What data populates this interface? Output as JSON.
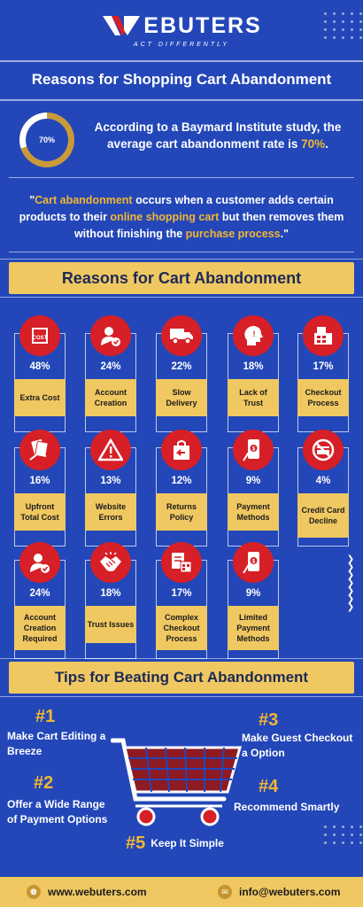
{
  "brand": {
    "name": "EBUTERS",
    "tagline": "ACT DIFFERENTLY"
  },
  "title": "Reasons for Shopping Cart Abandonment",
  "stat": {
    "ring_label": "70%",
    "ring_fraction": 0.7,
    "text_before": "According to a Baymard Institute study, the average cart abandonment rate is ",
    "text_highlight": "70%",
    "text_after": "."
  },
  "quote": {
    "p1": "\"",
    "h1": "Cart abandonment",
    "p2": " occurs when a customer adds certain products to their ",
    "h2": "online shopping cart",
    "p3": " but then removes them without finishing the ",
    "h3": "purchase process",
    "p4": ".\""
  },
  "reasons_heading": "Reasons for Cart Abandonment",
  "reasons": [
    {
      "pct": "48%",
      "label": "Extra Cost",
      "icon": "price-tag-icon"
    },
    {
      "pct": "24%",
      "label": "Account Creation",
      "icon": "user-check-icon"
    },
    {
      "pct": "22%",
      "label": "Slow Delivery",
      "icon": "truck-icon"
    },
    {
      "pct": "18%",
      "label": "Lack of Trust",
      "icon": "head-alert-icon"
    },
    {
      "pct": "17%",
      "label": "Checkout Process",
      "icon": "checkout-icon"
    },
    {
      "pct": "16%",
      "label": "Upfront Total Cost",
      "icon": "money-hand-icon"
    },
    {
      "pct": "13%",
      "label": "Website Errors",
      "icon": "warning-icon"
    },
    {
      "pct": "12%",
      "label": "Returns Policy",
      "icon": "return-bag-icon"
    },
    {
      "pct": "9%",
      "label": "Payment Methods",
      "icon": "mobile-payment-icon"
    },
    {
      "pct": "4%",
      "label": "Credit Card Decline",
      "icon": "card-declined-icon"
    },
    {
      "pct": "24%",
      "label": "Account Creation Required",
      "icon": "user-check-icon"
    },
    {
      "pct": "18%",
      "label": "Trust Issues",
      "icon": "handshake-icon"
    },
    {
      "pct": "17%",
      "label": "Complex Checkout Process",
      "icon": "complex-checkout-icon"
    },
    {
      "pct": "9%",
      "label": "Limited Payment Methods",
      "icon": "mobile-payment-icon"
    }
  ],
  "tips_heading": "Tips for Beating Cart Abandonment",
  "tips": [
    {
      "num": "#1",
      "text": "Make Cart Editing a Breeze"
    },
    {
      "num": "#2",
      "text": "Offer a Wide Range of Payment Options"
    },
    {
      "num": "#3",
      "text": "Make Guest Checkout a Option"
    },
    {
      "num": "#4",
      "text": "Recommend Smartly"
    },
    {
      "num": "#5",
      "text": "Keep It Simple"
    }
  ],
  "footer": {
    "website": "www.webuters.com",
    "email": "info@webuters.com"
  },
  "colors": {
    "background": "#2347b8",
    "accent_gold": "#f0c862",
    "highlight": "#f2b632",
    "icon_red": "#d61f26"
  }
}
